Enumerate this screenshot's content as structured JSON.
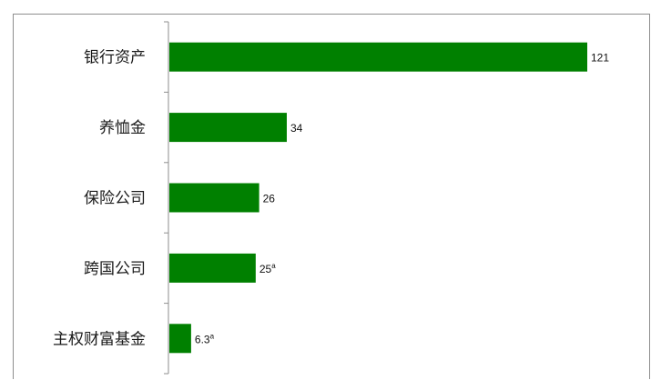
{
  "chart_data": {
    "type": "bar",
    "orientation": "horizontal",
    "categories": [
      "银行资产",
      "养恤金",
      "保险公司",
      "跨国公司",
      "主权财富基金"
    ],
    "values": [
      121,
      34,
      26,
      25,
      6.3
    ],
    "value_labels": [
      "121",
      "34",
      "26",
      "25",
      "6.3"
    ],
    "value_label_suffix": [
      "",
      "",
      "",
      "a",
      "a"
    ],
    "bar_color": "#008000",
    "axis_color": "#8e8e8e",
    "xlim": [
      0,
      121
    ],
    "grid": false,
    "legend": "none"
  }
}
